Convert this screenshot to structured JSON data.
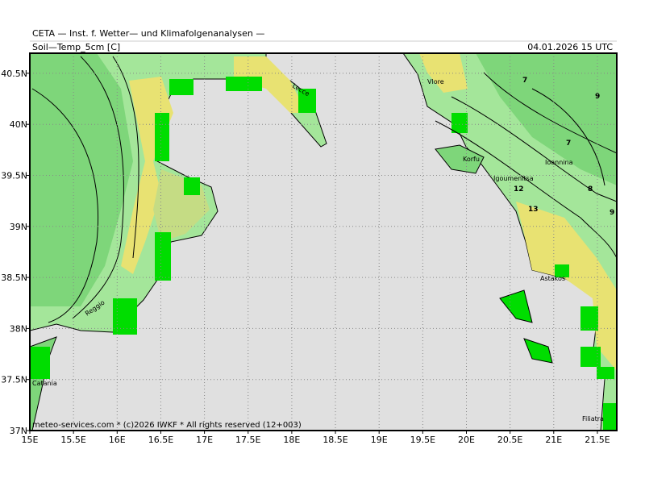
{
  "header": {
    "institute": "CETA — Inst. f. Wetter— und Klimafolgenanalysen —",
    "variable": "Soil—Temp_5cm [C]",
    "valid_time": "04.01.2026 15 UTC"
  },
  "footer": "meteo-services.com * (c)2026 IWKF * All rights reserved (12+003)",
  "map": {
    "lon_ticks": [
      {
        "value": 15,
        "label": "15E"
      },
      {
        "value": 15.5,
        "label": "15.5E"
      },
      {
        "value": 16,
        "label": "16E"
      },
      {
        "value": 16.5,
        "label": "16.5E"
      },
      {
        "value": 17,
        "label": "17E"
      },
      {
        "value": 17.5,
        "label": "17.5E"
      },
      {
        "value": 18,
        "label": "18E"
      },
      {
        "value": 18.5,
        "label": "18.5E"
      },
      {
        "value": 19,
        "label": "19E"
      },
      {
        "value": 19.5,
        "label": "19.5E"
      },
      {
        "value": 20,
        "label": "20E"
      },
      {
        "value": 20.5,
        "label": "20.5E"
      },
      {
        "value": 21,
        "label": "21E"
      },
      {
        "value": 21.5,
        "label": "21.5E"
      }
    ],
    "lat_ticks": [
      {
        "value": 40.5,
        "label": "40.5N"
      },
      {
        "value": 40,
        "label": "40N"
      },
      {
        "value": 39.5,
        "label": "39.5N"
      },
      {
        "value": 39,
        "label": "39N"
      },
      {
        "value": 38.5,
        "label": "38.5N"
      },
      {
        "value": 38,
        "label": "38N"
      },
      {
        "value": 37.5,
        "label": "37.5N"
      },
      {
        "value": 37,
        "label": "37N"
      }
    ],
    "places": [
      "Vlore",
      "Lecce",
      "Korfu",
      "Igoumenitsa",
      "Ioannina",
      "Astakos",
      "Reggio",
      "Catania",
      "Filiatra"
    ],
    "contour_labels": [
      7,
      9,
      7,
      12,
      8,
      13,
      9
    ]
  }
}
